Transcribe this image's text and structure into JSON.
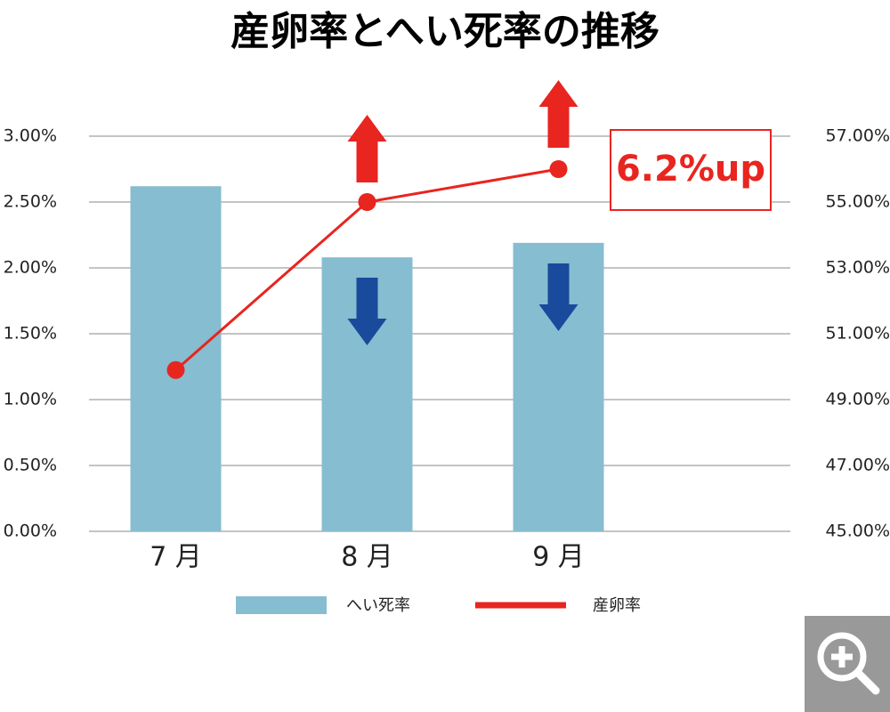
{
  "chart_data": {
    "type": "bar-line",
    "title": "産卵率とへい死率の推移",
    "categories": [
      "7 月",
      "8 月",
      "9 月"
    ],
    "series": [
      {
        "name": "へい死率",
        "type": "bar",
        "color": "#86bdd0",
        "values": [
          2.62,
          2.08,
          2.19
        ]
      },
      {
        "name": "産卵率",
        "type": "line",
        "axis": "y2",
        "color": "#e8251f",
        "values": [
          49.9,
          55.0,
          56.0
        ]
      }
    ],
    "ylim": [
      0,
      3
    ],
    "yticks": [
      {
        "value": 0,
        "label": "0.00%"
      },
      {
        "value": 0.5,
        "label": "0.50%"
      },
      {
        "value": 1,
        "label": "1.00%"
      },
      {
        "value": 1.5,
        "label": "1.50%"
      },
      {
        "value": 2,
        "label": "2.00%"
      },
      {
        "value": 2.5,
        "label": "2.50%"
      },
      {
        "value": 3,
        "label": "3.00%"
      }
    ],
    "y2lim": [
      45,
      57
    ],
    "y2ticks": [
      {
        "value": 45,
        "label": "45.00%"
      },
      {
        "value": 47,
        "label": "47.00%"
      },
      {
        "value": 49,
        "label": "49.00%"
      },
      {
        "value": 51,
        "label": "51.00%"
      },
      {
        "value": 53,
        "label": "53.00%"
      },
      {
        "value": 55,
        "label": "55.00%"
      },
      {
        "value": 57,
        "label": "57.00%"
      }
    ],
    "grid": true,
    "annotation": "6.2%up"
  }
}
